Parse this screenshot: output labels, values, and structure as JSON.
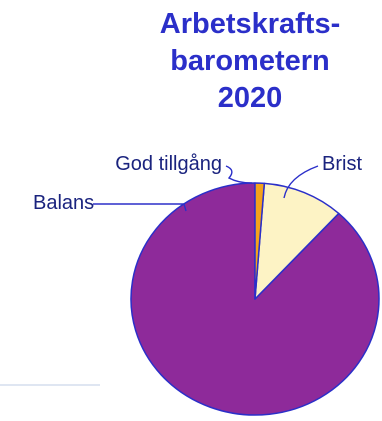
{
  "chart_data": {
    "type": "pie",
    "title": [
      "Arbetskrafts-",
      "barometern",
      "2020"
    ],
    "slices": [
      {
        "label": "Brist",
        "value": 88.2,
        "color": "#8e2a9a"
      },
      {
        "label": "Balans",
        "value": 10.6,
        "color": "#fdf3c5"
      },
      {
        "label": "God tillgång",
        "value": 1.2,
        "color": "#f5a21b"
      }
    ],
    "start_angle_deg": 0,
    "direction": "counterclockwise",
    "outline_color": "#2b2fc9",
    "leader_color": "#2b2fc9",
    "label_color": "#1a237e"
  }
}
